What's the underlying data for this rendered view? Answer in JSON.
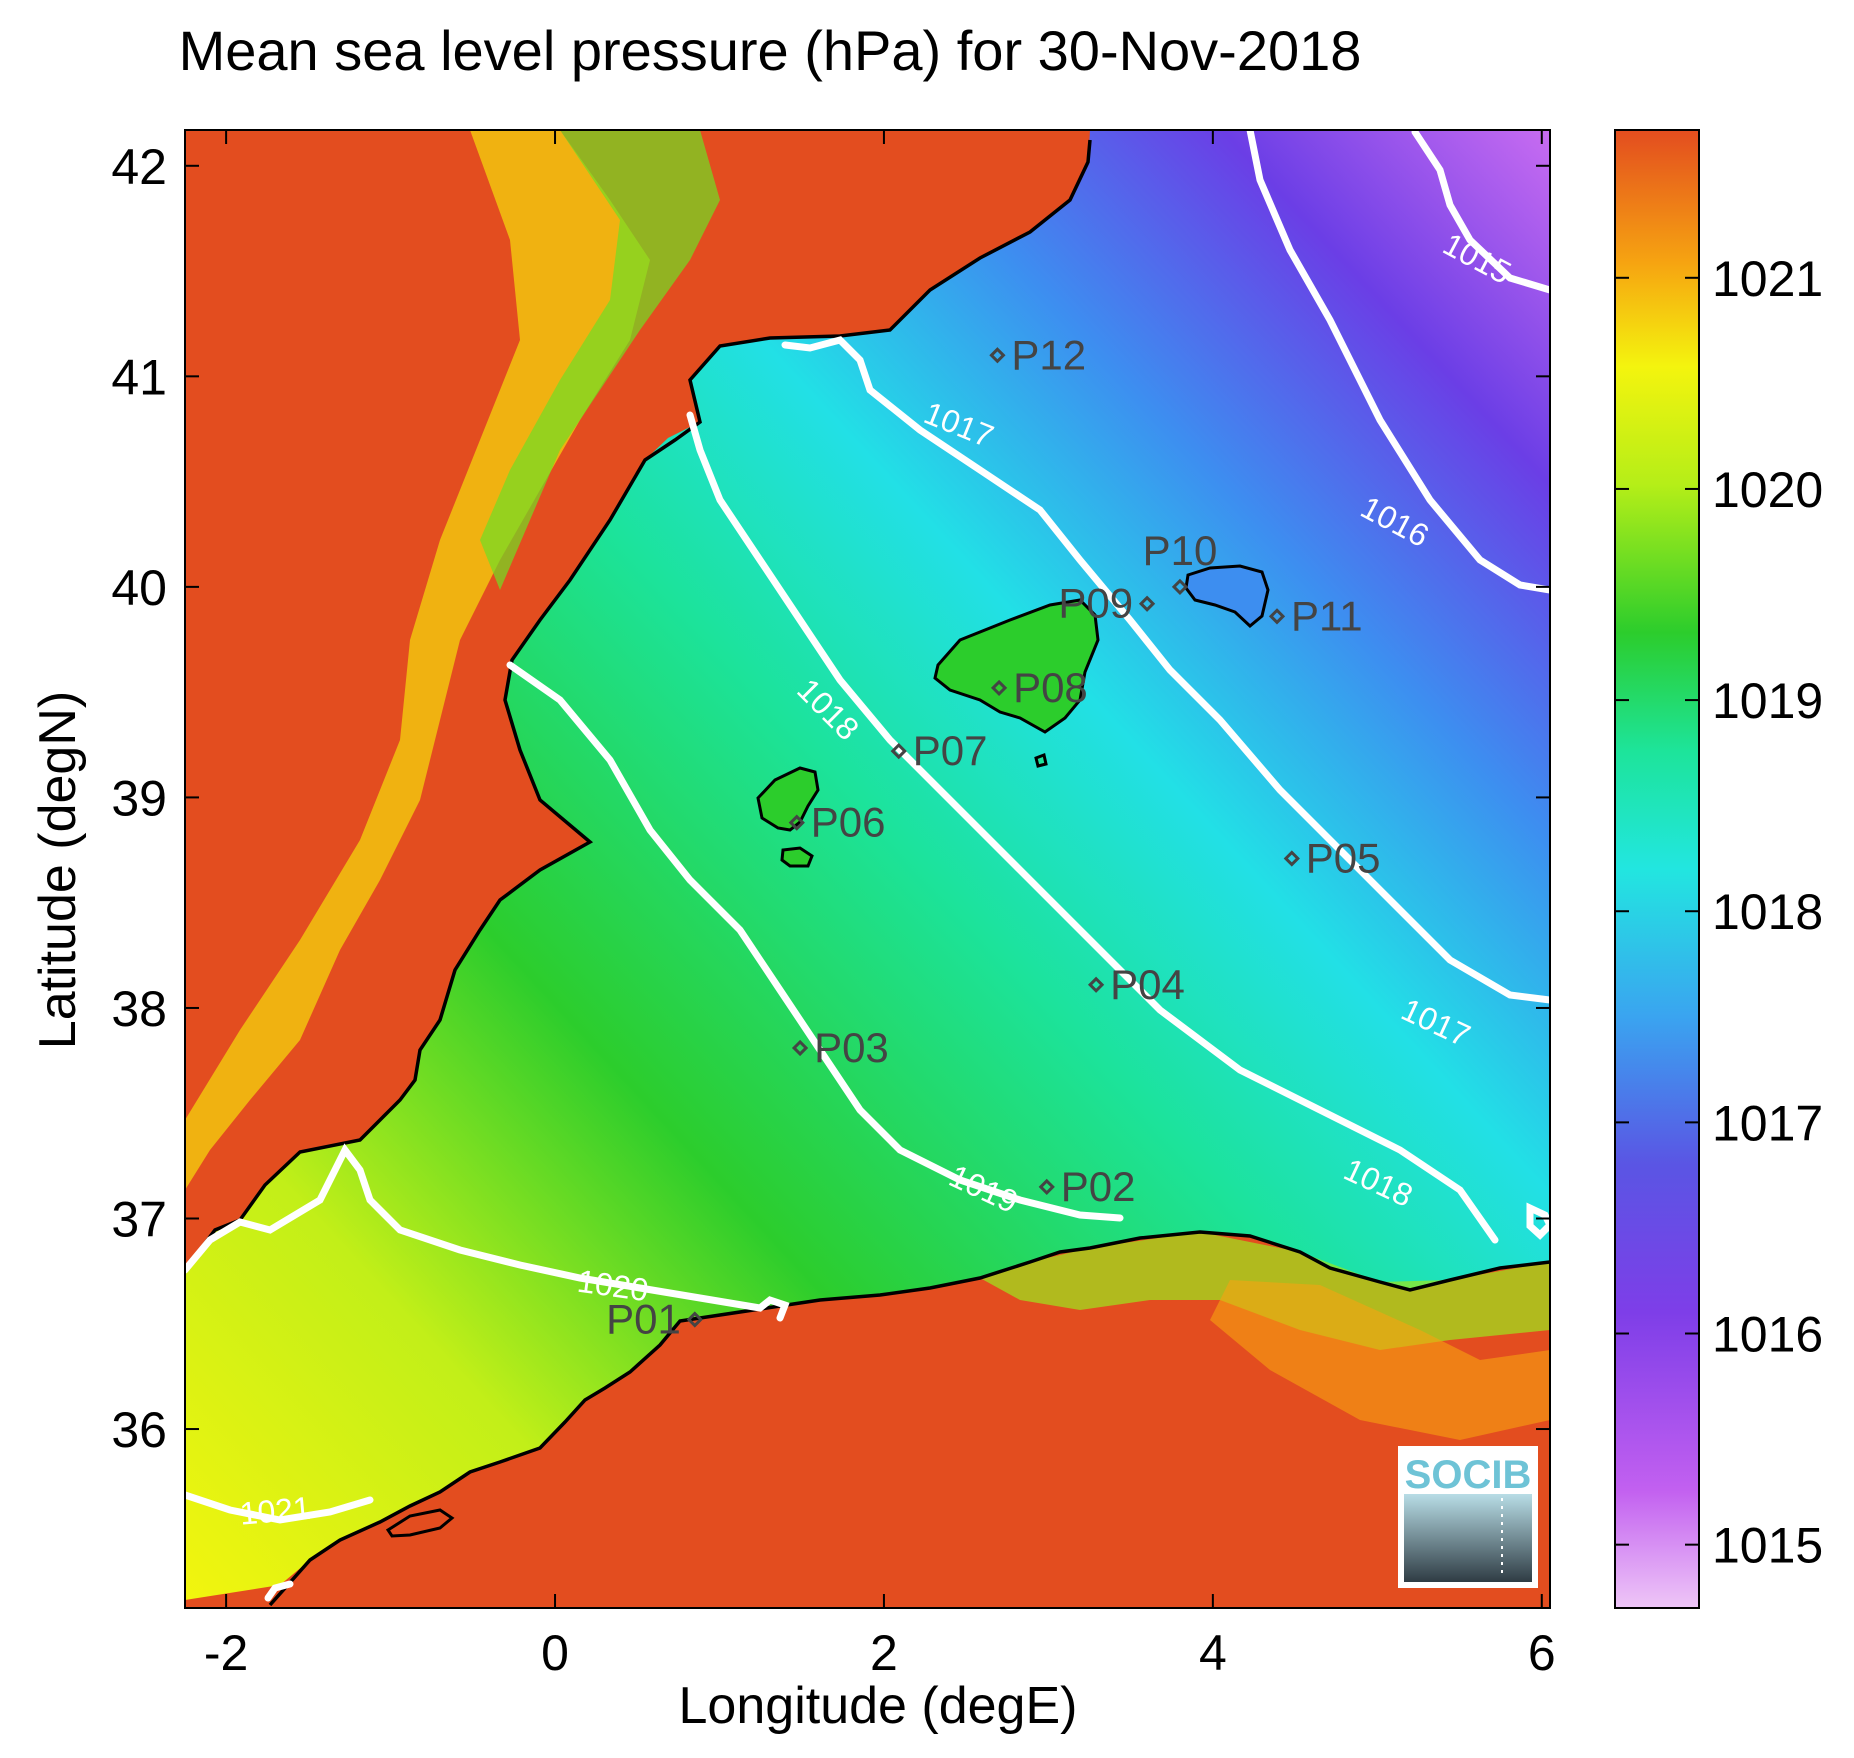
{
  "title": "Mean sea level pressure (hPa) for 30-Nov-2018",
  "map": {
    "xlabel": "Longitude (degE)",
    "ylabel": "Latitude (degN)",
    "xlim": [
      -2.25,
      6.05
    ],
    "ylim": [
      35.15,
      42.17
    ],
    "x_ticks": [
      {
        "value": -2,
        "label": "-2"
      },
      {
        "value": 0,
        "label": "0"
      },
      {
        "value": 2,
        "label": "2"
      },
      {
        "value": 4,
        "label": "4"
      },
      {
        "value": 6,
        "label": "6"
      }
    ],
    "y_ticks": [
      {
        "value": 36,
        "label": "36"
      },
      {
        "value": 37,
        "label": "37"
      },
      {
        "value": 38,
        "label": "38"
      },
      {
        "value": 39,
        "label": "39"
      },
      {
        "value": 40,
        "label": "40"
      },
      {
        "value": 41,
        "label": "41"
      },
      {
        "value": 42,
        "label": "42"
      }
    ],
    "stations": [
      {
        "name": "P01",
        "lon": 0.85,
        "lat": 36.52,
        "label_side": "left"
      },
      {
        "name": "P02",
        "lon": 2.99,
        "lat": 37.15,
        "label_side": "right"
      },
      {
        "name": "P03",
        "lon": 1.49,
        "lat": 37.81,
        "label_side": "right"
      },
      {
        "name": "P04",
        "lon": 3.29,
        "lat": 38.11,
        "label_side": "right"
      },
      {
        "name": "P05",
        "lon": 4.48,
        "lat": 38.71,
        "label_side": "right"
      },
      {
        "name": "P06",
        "lon": 1.47,
        "lat": 38.88,
        "label_side": "right"
      },
      {
        "name": "P07",
        "lon": 2.09,
        "lat": 39.22,
        "label_side": "right"
      },
      {
        "name": "P08",
        "lon": 2.7,
        "lat": 39.52,
        "label_side": "right"
      },
      {
        "name": "P09",
        "lon": 3.6,
        "lat": 39.92,
        "label_side": "left"
      },
      {
        "name": "P10",
        "lon": 3.8,
        "lat": 40.0,
        "label_side": "above"
      },
      {
        "name": "P11",
        "lon": 4.39,
        "lat": 39.86,
        "label_side": "right"
      },
      {
        "name": "P12",
        "lon": 2.69,
        "lat": 41.1,
        "label_side": "right"
      }
    ],
    "contour_labels": [
      {
        "text": "1015",
        "lon": 5.6,
        "lat": 41.55,
        "angle": 28
      },
      {
        "text": "1016",
        "lon": 5.1,
        "lat": 40.3,
        "angle": 28
      },
      {
        "text": "1017",
        "lon": 2.45,
        "lat": 40.76,
        "angle": 22
      },
      {
        "text": "1017",
        "lon": 5.35,
        "lat": 37.92,
        "angle": 25
      },
      {
        "text": "1018",
        "lon": 1.65,
        "lat": 39.41,
        "angle": 45
      },
      {
        "text": "1018",
        "lon": 5.0,
        "lat": 37.16,
        "angle": 25
      },
      {
        "text": "1019",
        "lon": 2.6,
        "lat": 37.13,
        "angle": 25
      },
      {
        "text": "1020",
        "lon": 0.35,
        "lat": 36.67,
        "angle": 8
      },
      {
        "text": "1021",
        "lon": -1.7,
        "lat": 35.6,
        "angle": -5
      }
    ]
  },
  "colorbar": {
    "min": 1014.7,
    "max": 1021.7,
    "ticks": [
      {
        "value": 1015,
        "label": "1015"
      },
      {
        "value": 1016,
        "label": "1016"
      },
      {
        "value": 1017,
        "label": "1017"
      },
      {
        "value": 1018,
        "label": "1018"
      },
      {
        "value": 1019,
        "label": "1019"
      },
      {
        "value": 1020,
        "label": "1020"
      },
      {
        "value": 1021,
        "label": "1021"
      }
    ],
    "colors": [
      "#e9b8f3",
      "#a532ee",
      "#6b3ee6",
      "#3d8ef0",
      "#22e0e6",
      "#1ce39a",
      "#2ccd2c",
      "#9be81e",
      "#f4f40e",
      "#f6a411",
      "#e34d1f"
    ]
  },
  "logo": {
    "text": "SOCIB",
    "color": "#6ec3d6"
  },
  "palette": {
    "contour": "#ffffff",
    "coast": "#000000",
    "station": "#444444",
    "land": "#e34d1f"
  }
}
